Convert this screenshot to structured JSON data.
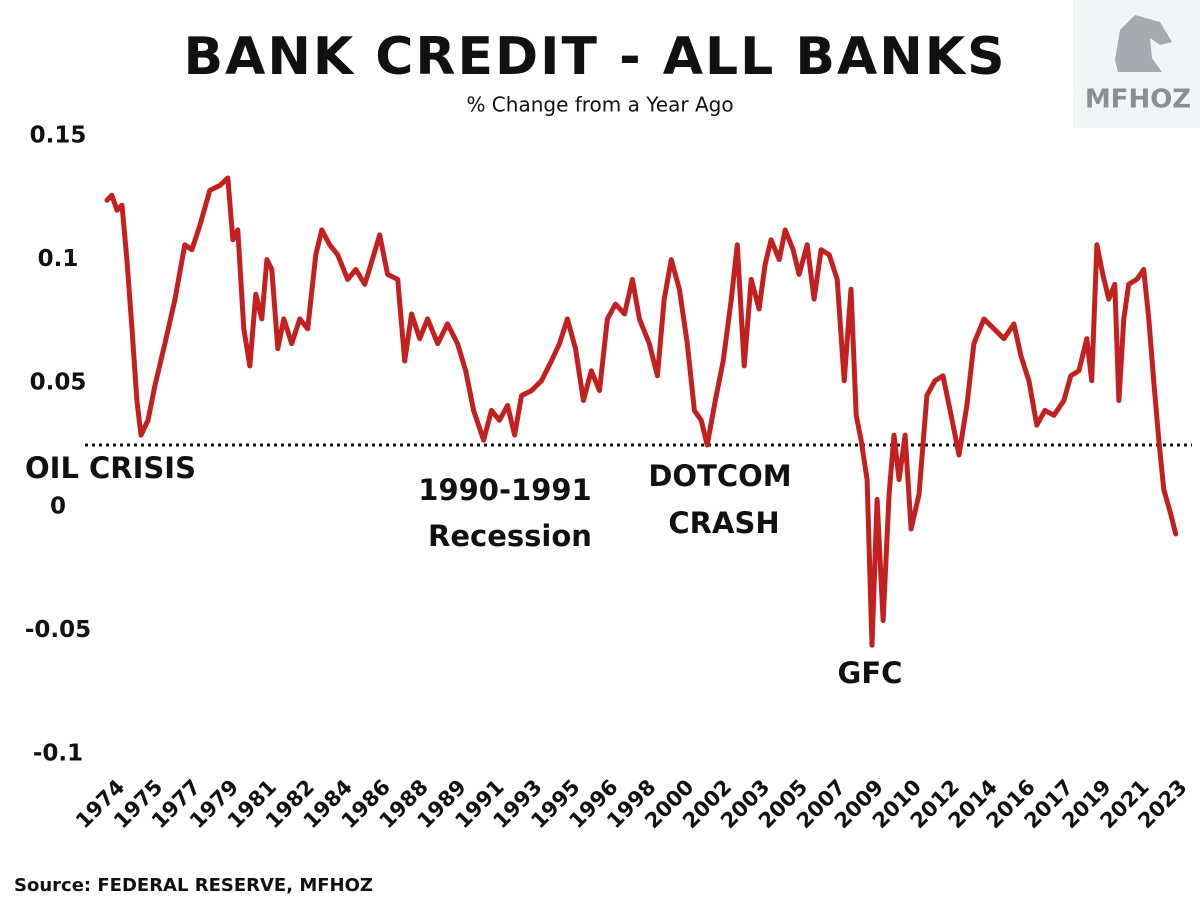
{
  "chart_data": {
    "type": "line",
    "title": "BANK CREDIT - ALL BANKS",
    "subtitle": "% Change from a Year Ago",
    "source": "Source: FEDERAL RESERVE, MFHOZ",
    "logo": "MFHOZ",
    "annotations": [
      "OIL CRISIS",
      "1990-1991",
      "Recession",
      "DOTCOM",
      "CRASH",
      "GFC"
    ],
    "reference_line": 0.025,
    "color": "#c42020",
    "xlim": [
      1973.5,
      2023.7
    ],
    "ylim": [
      -0.1,
      0.15
    ],
    "yticks": [
      0.15,
      0.1,
      0.05,
      0,
      -0.05,
      -0.1
    ],
    "xticks": [
      {
        "value": 1973.9,
        "label": "1974"
      },
      {
        "value": 1975.68,
        "label": "1975"
      },
      {
        "value": 1977.45,
        "label": "1977"
      },
      {
        "value": 1979.23,
        "label": "1979"
      },
      {
        "value": 1981.0,
        "label": "1981"
      },
      {
        "value": 1982.78,
        "label": "1982"
      },
      {
        "value": 1984.55,
        "label": "1984"
      },
      {
        "value": 1986.33,
        "label": "1986"
      },
      {
        "value": 1988.1,
        "label": "1988"
      },
      {
        "value": 1989.88,
        "label": "1989"
      },
      {
        "value": 1991.65,
        "label": "1991"
      },
      {
        "value": 1993.43,
        "label": "1993"
      },
      {
        "value": 1995.2,
        "label": "1995"
      },
      {
        "value": 1996.98,
        "label": "1996"
      },
      {
        "value": 1998.75,
        "label": "1998"
      },
      {
        "value": 2000.53,
        "label": "2000"
      },
      {
        "value": 2002.3,
        "label": "2002"
      },
      {
        "value": 2004.08,
        "label": "2003"
      },
      {
        "value": 2005.85,
        "label": "2005"
      },
      {
        "value": 2007.63,
        "label": "2007"
      },
      {
        "value": 2009.4,
        "label": "2009"
      },
      {
        "value": 2011.18,
        "label": "2010"
      },
      {
        "value": 2012.95,
        "label": "2012"
      },
      {
        "value": 2014.73,
        "label": "2014"
      },
      {
        "value": 2016.5,
        "label": "2016"
      },
      {
        "value": 2018.28,
        "label": "2017"
      },
      {
        "value": 2020.05,
        "label": "2019"
      },
      {
        "value": 2021.83,
        "label": "2021"
      },
      {
        "value": 2023.6,
        "label": "2023"
      }
    ],
    "x": [
      1973.5,
      1973.73,
      1973.97,
      1974.2,
      1974.43,
      1974.67,
      1974.9,
      1975.09,
      1975.42,
      1975.74,
      1976.21,
      1976.68,
      1977.14,
      1977.47,
      1977.85,
      1978.31,
      1978.78,
      1979.15,
      1979.39,
      1979.62,
      1979.9,
      1980.18,
      1980.46,
      1980.74,
      1980.98,
      1981.21,
      1981.49,
      1981.77,
      1982.14,
      1982.52,
      1982.89,
      1983.27,
      1983.55,
      1983.92,
      1984.29,
      1984.76,
      1985.14,
      1985.56,
      1985.88,
      1986.26,
      1986.63,
      1987.1,
      1987.43,
      1987.75,
      1988.13,
      1988.5,
      1988.97,
      1989.43,
      1989.9,
      1990.28,
      1990.65,
      1991.12,
      1991.49,
      1991.86,
      1992.24,
      1992.57,
      1992.89,
      1993.36,
      1993.83,
      1994.29,
      1994.67,
      1995.04,
      1995.42,
      1995.79,
      1996.16,
      1996.54,
      1996.91,
      1997.29,
      1997.71,
      1998.08,
      1998.41,
      1998.87,
      1999.25,
      1999.57,
      1999.9,
      2000.28,
      2000.65,
      2000.98,
      2001.3,
      2001.58,
      2001.96,
      2002.33,
      2002.71,
      2002.99,
      2003.31,
      2003.64,
      2004.01,
      2004.29,
      2004.57,
      2004.95,
      2005.23,
      2005.6,
      2005.88,
      2006.26,
      2006.58,
      2006.91,
      2007.29,
      2007.66,
      2007.99,
      2008.31,
      2008.55,
      2008.78,
      2009.06,
      2009.29,
      2009.53,
      2009.81,
      2010.09,
      2010.32,
      2010.56,
      2010.84,
      2011.12,
      2011.49,
      2011.86,
      2012.24,
      2012.61,
      2012.99,
      2013.36,
      2013.73,
      2014.06,
      2014.53,
      2015.0,
      2015.46,
      2015.93,
      2016.26,
      2016.63,
      2017.0,
      2017.38,
      2017.8,
      2018.27,
      2018.59,
      2018.97,
      2019.34,
      2019.57,
      2019.81,
      2020.09,
      2020.37,
      2020.65,
      2020.84,
      2021.07,
      2021.3,
      2021.68,
      2022.0,
      2022.24,
      2022.47,
      2022.71,
      2022.94,
      2023.27,
      2023.5
    ],
    "values": [
      0.124,
      0.126,
      0.12,
      0.122,
      0.1,
      0.072,
      0.043,
      0.029,
      0.035,
      0.049,
      0.066,
      0.084,
      0.106,
      0.104,
      0.114,
      0.128,
      0.13,
      0.133,
      0.108,
      0.112,
      0.072,
      0.057,
      0.086,
      0.076,
      0.1,
      0.096,
      0.064,
      0.076,
      0.066,
      0.076,
      0.072,
      0.102,
      0.112,
      0.106,
      0.102,
      0.092,
      0.096,
      0.09,
      0.099,
      0.11,
      0.094,
      0.092,
      0.059,
      0.078,
      0.068,
      0.076,
      0.066,
      0.074,
      0.066,
      0.055,
      0.039,
      0.027,
      0.039,
      0.035,
      0.041,
      0.029,
      0.045,
      0.047,
      0.051,
      0.059,
      0.066,
      0.076,
      0.064,
      0.043,
      0.055,
      0.047,
      0.076,
      0.082,
      0.078,
      0.092,
      0.076,
      0.066,
      0.053,
      0.084,
      0.1,
      0.088,
      0.066,
      0.039,
      0.035,
      0.025,
      0.043,
      0.059,
      0.084,
      0.106,
      0.057,
      0.092,
      0.08,
      0.098,
      0.108,
      0.1,
      0.112,
      0.104,
      0.094,
      0.106,
      0.084,
      0.104,
      0.102,
      0.092,
      0.051,
      0.088,
      0.037,
      0.027,
      0.011,
      -0.056,
      0.003,
      -0.046,
      0.005,
      0.029,
      0.011,
      0.029,
      -0.009,
      0.005,
      0.045,
      0.051,
      0.053,
      0.037,
      0.021,
      0.041,
      0.066,
      0.076,
      0.072,
      0.068,
      0.074,
      0.061,
      0.051,
      0.033,
      0.039,
      0.037,
      0.043,
      0.053,
      0.055,
      0.068,
      0.051,
      0.106,
      0.094,
      0.084,
      0.09,
      0.043,
      0.076,
      0.09,
      0.092,
      0.096,
      0.076,
      0.051,
      0.027,
      0.007,
      -0.003,
      -0.011
    ]
  }
}
